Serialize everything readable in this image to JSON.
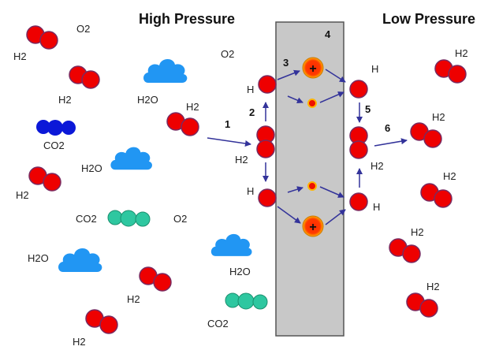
{
  "titles": {
    "left": "High Pressure",
    "right": "Low Pressure"
  },
  "colors": {
    "h_atom": "#ee0000",
    "h_outline": "#7a2a60",
    "cloud": "#2196f3",
    "co2_blue": "#0b18d8",
    "co2_green": "#2ec7a0",
    "membrane": "#c8c8c8",
    "arrow": "#33339a",
    "proton_glow": "#ffb400"
  },
  "step_numbers": [
    "1",
    "2",
    "3",
    "4",
    "5",
    "6"
  ],
  "labels": {
    "left": {
      "o2_top": "O2",
      "h2_top": "H2",
      "o2_mid": "O2",
      "h2_a": "H2",
      "h2o_a": "H2O",
      "h2_b": "H2",
      "co2_blue": "CO2",
      "h2o_b": "H2O",
      "h2_c": "H2",
      "co2_green": "CO2",
      "o2_low": "O2",
      "h2o_c": "H2O",
      "h2o_d": "H2O",
      "h2_d": "H2",
      "co2_bottom": "CO2",
      "h2_e": "H2",
      "h_upper": "H",
      "h2_diss": "H2",
      "h_lower": "H"
    },
    "right": {
      "h_upper": "H",
      "h2_recomb": "H2",
      "h_lower": "H",
      "h2_a": "H2",
      "h2_b": "H2",
      "h2_c": "H2",
      "h2_d": "H2",
      "h2_e": "H2"
    },
    "proton_sign": "+"
  }
}
